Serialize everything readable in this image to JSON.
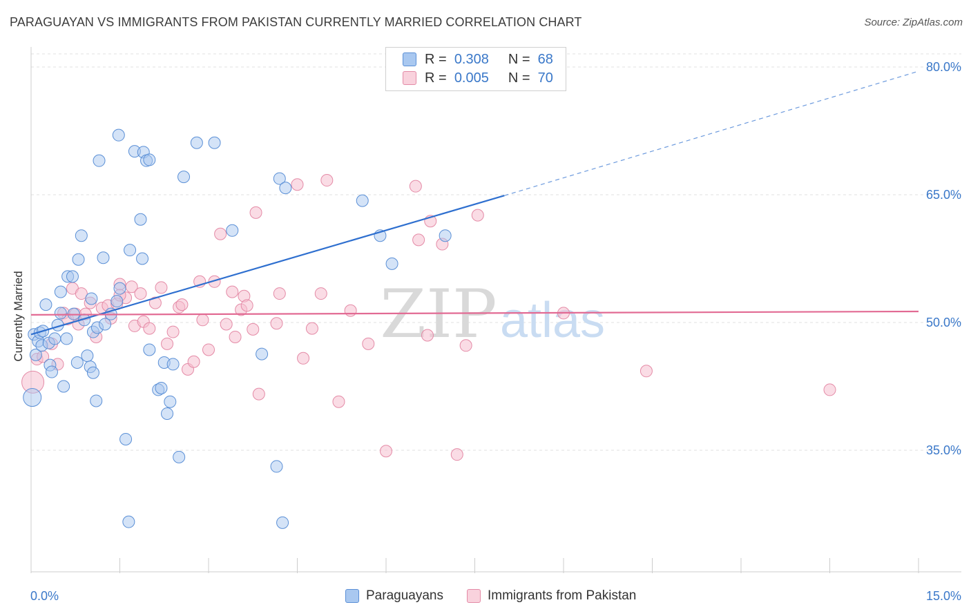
{
  "title": "PARAGUAYAN VS IMMIGRANTS FROM PAKISTAN CURRENTLY MARRIED CORRELATION CHART",
  "source": "Source: ZipAtlas.com",
  "watermark": {
    "zip": "ZIP",
    "atlas": "atlas"
  },
  "legend": {
    "r_label": "R =",
    "n_label": "N =",
    "rows": [
      {
        "r": "0.308",
        "n": "68"
      },
      {
        "r": "0.005",
        "n": "70"
      }
    ]
  },
  "colors": {
    "blue_fill": "#a9c8f0",
    "blue_stroke": "#5a8fd6",
    "blue_line": "#2e6fcf",
    "pink_fill": "#f5c0cf",
    "pink_stroke": "#e48aa6",
    "pink_line": "#e26a93",
    "axis_label": "#3a78c9",
    "grid": "#e2e2e2"
  },
  "chart_data": {
    "type": "scatter",
    "title": "PARAGUAYAN VS IMMIGRANTS FROM PAKISTAN CURRENTLY MARRIED CORRELATION CHART",
    "xlabel": "",
    "ylabel": "Currently Married",
    "xlim": [
      0,
      15
    ],
    "ylim": [
      20,
      82
    ],
    "x_tick_labels": [
      "0.0%",
      "15.0%"
    ],
    "y_ticks": [
      35,
      50,
      65,
      80
    ],
    "y_tick_labels": [
      "35.0%",
      "50.0%",
      "65.0%",
      "80.0%"
    ],
    "series": [
      {
        "name": "Paraguayans",
        "R": 0.308,
        "N": 68,
        "trend": {
          "x0": 0,
          "y0": 48.6,
          "x1": 8.0,
          "y1": 64.9,
          "dash_to_x": 15,
          "dash_to_y": 79.5
        },
        "points": [
          [
            0.02,
            41.2
          ],
          [
            0.05,
            48.6
          ],
          [
            0.08,
            46.2
          ],
          [
            0.12,
            47.8
          ],
          [
            0.15,
            48.8
          ],
          [
            0.18,
            47.3
          ],
          [
            0.2,
            49.0
          ],
          [
            0.25,
            52.1
          ],
          [
            0.3,
            47.6
          ],
          [
            0.32,
            45.0
          ],
          [
            0.35,
            44.2
          ],
          [
            0.4,
            48.1
          ],
          [
            0.45,
            49.7
          ],
          [
            0.5,
            51.1
          ],
          [
            0.5,
            53.6
          ],
          [
            0.55,
            42.5
          ],
          [
            0.6,
            48.1
          ],
          [
            0.62,
            55.4
          ],
          [
            0.7,
            55.4
          ],
          [
            0.72,
            51.0
          ],
          [
            0.78,
            45.3
          ],
          [
            0.8,
            57.4
          ],
          [
            0.85,
            60.2
          ],
          [
            0.9,
            50.3
          ],
          [
            0.95,
            46.1
          ],
          [
            1.0,
            44.8
          ],
          [
            1.02,
            52.8
          ],
          [
            1.05,
            44.1
          ],
          [
            1.05,
            48.9
          ],
          [
            1.1,
            40.8
          ],
          [
            1.12,
            49.4
          ],
          [
            1.15,
            69.0
          ],
          [
            1.22,
            57.6
          ],
          [
            1.25,
            49.8
          ],
          [
            1.35,
            51.0
          ],
          [
            1.45,
            52.5
          ],
          [
            1.5,
            54.0
          ],
          [
            1.48,
            72.0
          ],
          [
            1.6,
            36.3
          ],
          [
            1.67,
            58.5
          ],
          [
            1.75,
            70.1
          ],
          [
            1.85,
            62.1
          ],
          [
            1.88,
            57.5
          ],
          [
            1.9,
            70.0
          ],
          [
            1.95,
            69.0
          ],
          [
            2.0,
            46.8
          ],
          [
            2.0,
            69.1
          ],
          [
            2.15,
            42.1
          ],
          [
            2.2,
            42.3
          ],
          [
            2.25,
            45.3
          ],
          [
            2.3,
            39.3
          ],
          [
            2.35,
            40.7
          ],
          [
            2.4,
            45.1
          ],
          [
            2.5,
            34.2
          ],
          [
            2.58,
            67.1
          ],
          [
            2.8,
            71.1
          ],
          [
            3.1,
            71.1
          ],
          [
            3.4,
            60.8
          ],
          [
            3.9,
            46.3
          ],
          [
            4.15,
            33.1
          ],
          [
            4.2,
            66.9
          ],
          [
            4.3,
            65.8
          ],
          [
            4.25,
            26.5
          ],
          [
            5.6,
            64.3
          ],
          [
            5.9,
            60.2
          ],
          [
            6.1,
            56.9
          ],
          [
            7.0,
            60.2
          ],
          [
            1.65,
            26.6
          ]
        ]
      },
      {
        "name": "Immigrants from Pakistan",
        "R": 0.005,
        "N": 70,
        "trend": {
          "x0": 0,
          "y0": 50.9,
          "x1": 15,
          "y1": 51.3
        },
        "points": [
          [
            0.03,
            43.0
          ],
          [
            0.1,
            45.7
          ],
          [
            0.2,
            46.0
          ],
          [
            0.35,
            47.5
          ],
          [
            0.45,
            45.1
          ],
          [
            0.55,
            51.1
          ],
          [
            0.62,
            50.4
          ],
          [
            0.7,
            54.0
          ],
          [
            0.75,
            51.0
          ],
          [
            0.8,
            49.8
          ],
          [
            0.85,
            53.4
          ],
          [
            0.92,
            51.0
          ],
          [
            1.0,
            52.3
          ],
          [
            1.1,
            48.3
          ],
          [
            1.2,
            51.7
          ],
          [
            1.3,
            52.0
          ],
          [
            1.35,
            50.5
          ],
          [
            1.45,
            52.2
          ],
          [
            1.5,
            54.5
          ],
          [
            1.6,
            52.9
          ],
          [
            1.7,
            54.2
          ],
          [
            1.75,
            49.6
          ],
          [
            1.85,
            53.4
          ],
          [
            1.9,
            50.1
          ],
          [
            2.0,
            49.3
          ],
          [
            2.1,
            52.3
          ],
          [
            2.2,
            54.1
          ],
          [
            2.3,
            47.5
          ],
          [
            2.4,
            48.9
          ],
          [
            2.5,
            51.8
          ],
          [
            2.55,
            52.1
          ],
          [
            2.65,
            44.5
          ],
          [
            2.75,
            45.4
          ],
          [
            2.85,
            54.8
          ],
          [
            2.9,
            50.3
          ],
          [
            3.0,
            46.8
          ],
          [
            3.1,
            54.8
          ],
          [
            3.2,
            60.4
          ],
          [
            3.3,
            49.8
          ],
          [
            3.4,
            53.6
          ],
          [
            3.45,
            48.3
          ],
          [
            3.55,
            51.5
          ],
          [
            3.6,
            53.1
          ],
          [
            3.65,
            52.0
          ],
          [
            3.75,
            49.2
          ],
          [
            3.8,
            62.9
          ],
          [
            3.85,
            41.6
          ],
          [
            4.15,
            49.9
          ],
          [
            4.2,
            53.4
          ],
          [
            4.5,
            66.2
          ],
          [
            4.6,
            45.8
          ],
          [
            4.75,
            49.3
          ],
          [
            4.9,
            53.4
          ],
          [
            5.0,
            66.7
          ],
          [
            5.2,
            40.7
          ],
          [
            5.4,
            51.4
          ],
          [
            5.7,
            47.5
          ],
          [
            6.0,
            34.9
          ],
          [
            6.5,
            66.0
          ],
          [
            6.55,
            59.7
          ],
          [
            6.7,
            48.5
          ],
          [
            6.75,
            61.9
          ],
          [
            6.95,
            59.2
          ],
          [
            7.2,
            34.5
          ],
          [
            7.35,
            47.3
          ],
          [
            7.55,
            62.6
          ],
          [
            9.0,
            51.1
          ],
          [
            10.4,
            44.3
          ],
          [
            13.5,
            42.1
          ],
          [
            1.5,
            53.2
          ]
        ]
      }
    ]
  },
  "bottom_legend": [
    "Paraguayans",
    "Immigrants from Pakistan"
  ]
}
